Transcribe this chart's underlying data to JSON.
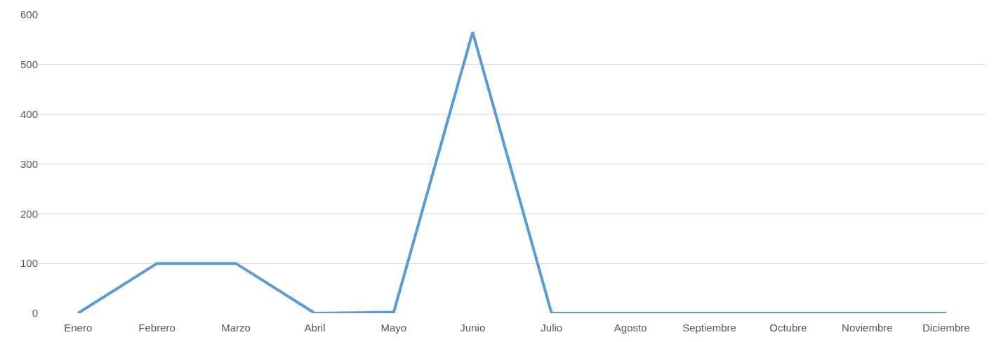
{
  "chart_data": {
    "type": "line",
    "categories": [
      "Enero",
      "Febrero",
      "Marzo",
      "Abril",
      "Mayo",
      "Junio",
      "Julio",
      "Agosto",
      "Septiembre",
      "Octubre",
      "Noviembre",
      "Diciembre"
    ],
    "series": [
      {
        "color": "#5b9bd5",
        "values": [
          0,
          100,
          100,
          0,
          2,
          565,
          0,
          0,
          0,
          0,
          0,
          0
        ]
      }
    ],
    "ylim": [
      0,
      600
    ],
    "yticks": [
      0,
      100,
      200,
      300,
      400,
      500,
      600
    ],
    "grid": "y",
    "marker": "none",
    "line_style": "solid"
  }
}
